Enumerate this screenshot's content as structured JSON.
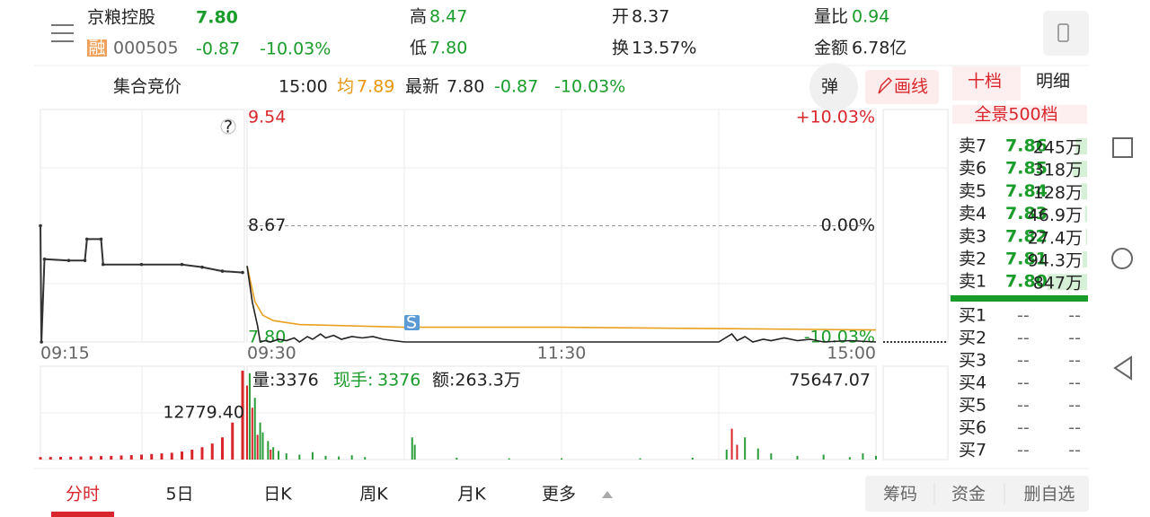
{
  "header": {
    "name": "京粮控股",
    "badge": "融",
    "code": "000505",
    "price": "7.80",
    "change": "-0.87",
    "change_pct": "-10.03%",
    "stats": [
      {
        "label": "高",
        "value": "8.47"
      },
      {
        "label": "低",
        "value": "7.80"
      },
      {
        "label": "开",
        "value": "8.37"
      },
      {
        "label": "换",
        "value": "13.57%"
      },
      {
        "label": "量比",
        "value": "0.94"
      },
      {
        "label": "金额",
        "value": "6.78亿"
      }
    ]
  },
  "status": {
    "label": "集合竞价",
    "time": "15:00",
    "avg_label": "均",
    "avg": "7.89",
    "latest_label": "最新",
    "latest": "7.80",
    "change": "-0.87",
    "change_pct": "-10.03%",
    "float_button": "弹",
    "draw_button": "画线"
  },
  "book_tabs": [
    "十档",
    "明细"
  ],
  "chart": {
    "ylim": [
      7.8,
      9.54
    ],
    "yticks": [
      {
        "value": 9.54,
        "label": "9.54"
      },
      {
        "value": 8.67,
        "label": "8.67"
      },
      {
        "value": 7.8,
        "label": "7.80"
      }
    ],
    "pct_labels": [
      "+10.03%",
      "0.00%",
      "-10.03%"
    ],
    "time_labels": [
      "09:15",
      "09:30",
      "11:30",
      "15:00"
    ],
    "marker": "S",
    "auction": {
      "xlim": [
        0,
        10
      ],
      "x": [
        0,
        0.05,
        0.2,
        1.4,
        2.2,
        2.3,
        3.0,
        3.1,
        5,
        7,
        8,
        9,
        10
      ],
      "values": [
        8.67,
        7.8,
        8.42,
        8.41,
        8.41,
        8.57,
        8.57,
        8.38,
        8.38,
        8.38,
        8.36,
        8.33,
        8.32
      ]
    },
    "price": {
      "xlim": [
        0,
        240
      ],
      "x": [
        0,
        2,
        4,
        5,
        7,
        9,
        12,
        15,
        18,
        20,
        23,
        25,
        28,
        30,
        33,
        36,
        40,
        44,
        48,
        52,
        56,
        60,
        120,
        180,
        185,
        187,
        190,
        193,
        197,
        200,
        205,
        210,
        215,
        220,
        230,
        240
      ],
      "values": [
        8.37,
        8.1,
        7.92,
        7.8,
        7.81,
        7.8,
        7.82,
        7.81,
        7.83,
        7.8,
        7.84,
        7.82,
        7.86,
        7.83,
        7.85,
        7.82,
        7.84,
        7.83,
        7.84,
        7.82,
        7.81,
        7.8,
        7.8,
        7.8,
        7.86,
        7.81,
        7.84,
        7.8,
        7.82,
        7.81,
        7.83,
        7.81,
        7.82,
        7.8,
        7.81,
        7.8
      ]
    },
    "avg": {
      "x": [
        0,
        3,
        6,
        10,
        20,
        40,
        60,
        120,
        180,
        240
      ],
      "values": [
        8.37,
        8.1,
        8.0,
        7.96,
        7.93,
        7.92,
        7.91,
        7.91,
        7.9,
        7.89
      ]
    }
  },
  "volume": {
    "ylim": [
      0,
      75647.07
    ],
    "max_label": "75647.07",
    "mid_label": "12779.40",
    "info": {
      "vol": "量:3376",
      "hand_label": "现手:",
      "hand": "3376",
      "amount": "额:263.3万"
    },
    "auction": {
      "x": [
        0,
        0.5,
        1,
        1.5,
        2,
        2.5,
        3,
        3.5,
        4,
        4.5,
        5,
        5.5,
        6,
        6.5,
        7,
        7.5,
        8,
        8.5,
        9,
        9.5,
        10
      ],
      "values": [
        2000,
        2100,
        2200,
        2300,
        2500,
        2700,
        2800,
        3000,
        3300,
        3600,
        4000,
        4500,
        5000,
        5500,
        6500,
        8000,
        10000,
        13000,
        18000,
        30000,
        72000
      ]
    },
    "series": [
      {
        "name": "up",
        "color": "#d9262c",
        "x": [
          0,
          2,
          4,
          9,
          185,
          187
        ],
        "values": [
          60000,
          42000,
          20000,
          8000,
          25000,
          12000
        ]
      },
      {
        "name": "down",
        "color": "#2a9d3a",
        "x": [
          1,
          3,
          5,
          6,
          8,
          10,
          12,
          15,
          20,
          25,
          30,
          35,
          40,
          45,
          63,
          64,
          80,
          100,
          120,
          150,
          170,
          183,
          190,
          195,
          200,
          210,
          220,
          230,
          235,
          240
        ],
        "values": [
          70000,
          50000,
          30000,
          22000,
          15000,
          10000,
          7000,
          5000,
          4000,
          6000,
          3000,
          2500,
          3500,
          2000,
          18000,
          12000,
          1500,
          1000,
          1000,
          1000,
          1500,
          8000,
          18000,
          9000,
          5000,
          3000,
          4000,
          2000,
          5000,
          3000
        ]
      }
    ]
  },
  "book": {
    "panorama": "全景500档",
    "max_volume": 847,
    "asks": [
      {
        "label": "卖7",
        "price": "7.86",
        "volume": 245,
        "volume_label": "245万"
      },
      {
        "label": "卖6",
        "price": "7.85",
        "volume": 318,
        "volume_label": "318万"
      },
      {
        "label": "卖5",
        "price": "7.84",
        "volume": 128,
        "volume_label": "128万"
      },
      {
        "label": "卖4",
        "price": "7.83",
        "volume": 46.9,
        "volume_label": "46.9万"
      },
      {
        "label": "卖3",
        "price": "7.82",
        "volume": 27.4,
        "volume_label": "27.4万"
      },
      {
        "label": "卖2",
        "price": "7.81",
        "volume": 94.3,
        "volume_label": "94.3万"
      },
      {
        "label": "卖1",
        "price": "7.80",
        "volume": 847,
        "volume_label": "847万"
      }
    ],
    "bids": [
      {
        "label": "买1",
        "price": "--",
        "volume": "--"
      },
      {
        "label": "买2",
        "price": "--",
        "volume": "--"
      },
      {
        "label": "买3",
        "price": "--",
        "volume": "--"
      },
      {
        "label": "买4",
        "price": "--",
        "volume": "--"
      },
      {
        "label": "买5",
        "price": "--",
        "volume": "--"
      },
      {
        "label": "买6",
        "price": "--",
        "volume": "--"
      },
      {
        "label": "买7",
        "price": "--",
        "volume": "--"
      }
    ]
  },
  "bottom_tabs": [
    "分时",
    "5日",
    "日K",
    "周K",
    "月K",
    "更多"
  ],
  "actions": [
    "筹码",
    "资金",
    "删自选"
  ]
}
